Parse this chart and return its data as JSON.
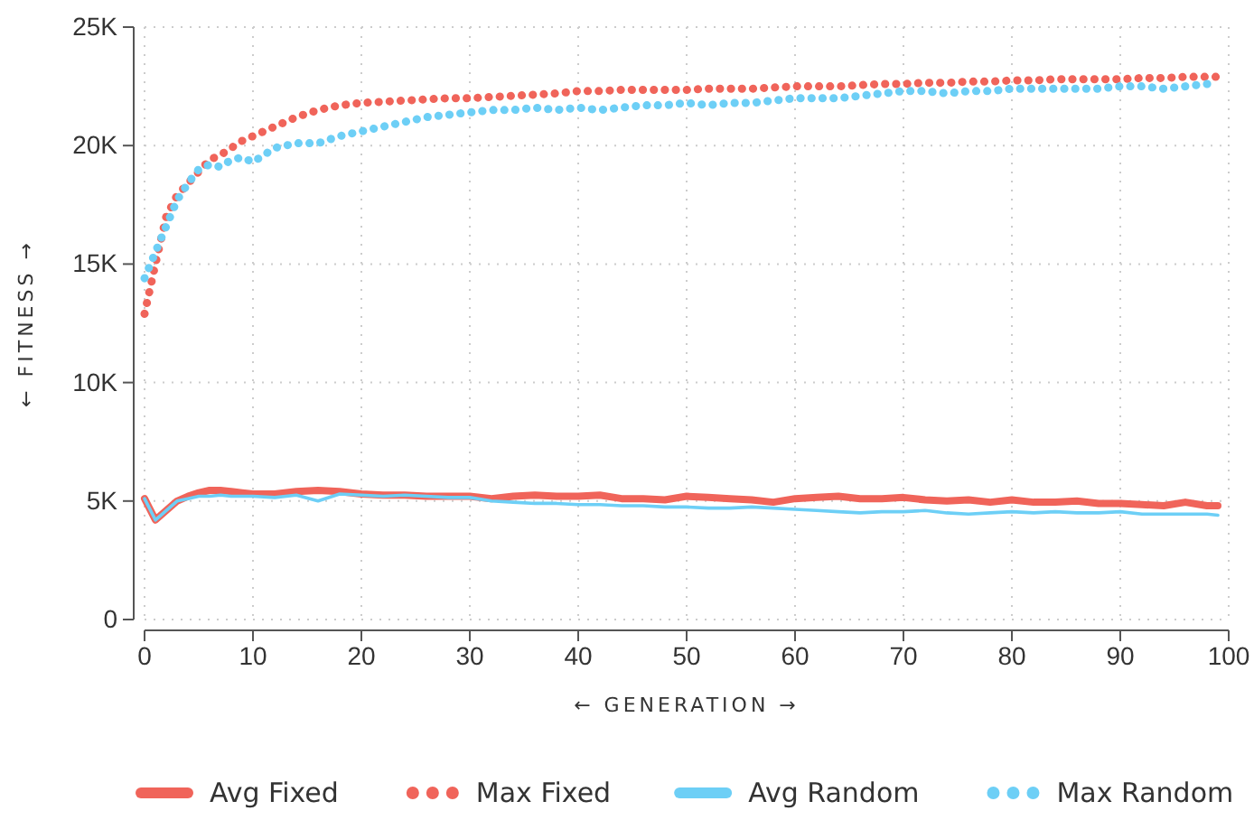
{
  "chart_data": {
    "type": "line",
    "xlabel": "← GENERATION →",
    "ylabel": "← FITNESS →",
    "x": [
      0,
      1,
      2,
      3,
      4,
      5,
      6,
      7,
      8,
      9,
      10,
      12,
      14,
      16,
      18,
      20,
      22,
      24,
      26,
      28,
      30,
      32,
      34,
      36,
      38,
      40,
      42,
      44,
      46,
      48,
      50,
      52,
      54,
      56,
      58,
      60,
      62,
      64,
      66,
      68,
      70,
      72,
      74,
      76,
      78,
      80,
      82,
      84,
      86,
      88,
      90,
      92,
      94,
      96,
      98,
      99
    ],
    "xlim": [
      0,
      100
    ],
    "xticks": [
      0,
      10,
      20,
      30,
      40,
      50,
      60,
      70,
      80,
      90,
      100
    ],
    "ylim": [
      0,
      25000
    ],
    "yticks": [
      {
        "value": 0,
        "label": "0"
      },
      {
        "value": 5000,
        "label": "5K"
      },
      {
        "value": 10000,
        "label": "10K"
      },
      {
        "value": 15000,
        "label": "15K"
      },
      {
        "value": 20000,
        "label": "20K"
      },
      {
        "value": 25000,
        "label": "25K"
      }
    ],
    "grid": true,
    "legend": "bottom",
    "series": [
      {
        "name": "Avg Fixed",
        "color": "#f0645a",
        "line_style": "solid",
        "values": [
          5100,
          4200,
          4600,
          5000,
          5200,
          5350,
          5450,
          5450,
          5400,
          5350,
          5300,
          5300,
          5400,
          5450,
          5400,
          5300,
          5250,
          5250,
          5200,
          5200,
          5200,
          5100,
          5200,
          5250,
          5200,
          5200,
          5250,
          5100,
          5100,
          5050,
          5200,
          5150,
          5100,
          5050,
          4950,
          5100,
          5150,
          5200,
          5100,
          5100,
          5150,
          5050,
          5000,
          5050,
          4950,
          5050,
          4950,
          4950,
          5000,
          4900,
          4900,
          4850,
          4800,
          4950,
          4800,
          4800
        ]
      },
      {
        "name": "Max Fixed",
        "color": "#f0645a",
        "line_style": "dotted",
        "values": [
          12900,
          15000,
          17000,
          17900,
          18400,
          18900,
          19400,
          19600,
          19900,
          20200,
          20400,
          20800,
          21200,
          21500,
          21700,
          21800,
          21850,
          21900,
          21950,
          22000,
          22000,
          22050,
          22100,
          22150,
          22200,
          22300,
          22300,
          22350,
          22350,
          22350,
          22350,
          22400,
          22400,
          22400,
          22450,
          22500,
          22500,
          22500,
          22550,
          22600,
          22600,
          22650,
          22650,
          22700,
          22700,
          22750,
          22750,
          22800,
          22800,
          22800,
          22800,
          22850,
          22850,
          22900,
          22900,
          22900
        ]
      },
      {
        "name": "Avg Random",
        "color": "#6dcff6",
        "line_style": "solid",
        "values": [
          5100,
          4200,
          4600,
          5000,
          5100,
          5200,
          5200,
          5250,
          5200,
          5200,
          5200,
          5150,
          5250,
          5000,
          5300,
          5250,
          5200,
          5250,
          5200,
          5150,
          5150,
          5000,
          4950,
          4900,
          4900,
          4850,
          4850,
          4800,
          4800,
          4750,
          4750,
          4700,
          4700,
          4750,
          4700,
          4650,
          4600,
          4550,
          4500,
          4550,
          4550,
          4600,
          4500,
          4450,
          4500,
          4550,
          4500,
          4550,
          4500,
          4500,
          4550,
          4450,
          4450,
          4450,
          4450,
          4400
        ]
      },
      {
        "name": "Max Random",
        "color": "#6dcff6",
        "line_style": "dotted",
        "values": [
          14400,
          15500,
          16600,
          17700,
          18400,
          19000,
          19200,
          19100,
          19400,
          19500,
          19300,
          19900,
          20100,
          20100,
          20400,
          20600,
          20800,
          21000,
          21200,
          21300,
          21400,
          21500,
          21500,
          21600,
          21500,
          21600,
          21500,
          21600,
          21700,
          21700,
          21800,
          21700,
          21800,
          21800,
          21900,
          22000,
          22000,
          22000,
          22100,
          22200,
          22300,
          22300,
          22200,
          22300,
          22300,
          22400,
          22400,
          22400,
          22400,
          22400,
          22500,
          22500,
          22400,
          22500,
          22600,
          22600
        ]
      }
    ]
  }
}
